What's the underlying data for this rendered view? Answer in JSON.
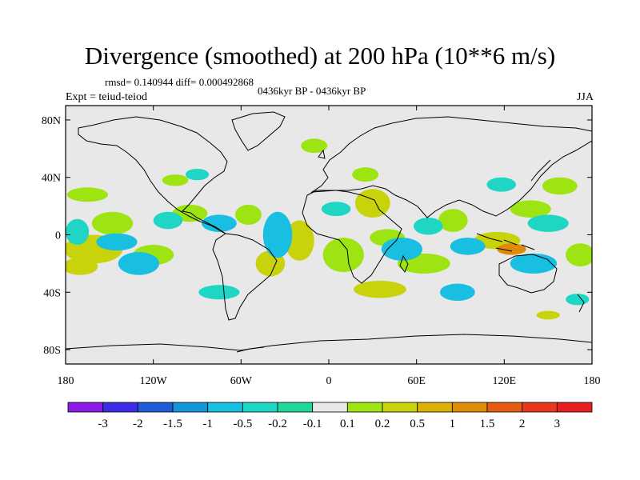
{
  "chart_data": {
    "type": "heatmap",
    "title": "Divergence (smoothed) at 200 hPa (10**6 m/s)",
    "stats_label": "rmsd= 0.140944  diff= 0.000492868",
    "period_label": "0436kyr BP - 0436kyr BP",
    "experiment_label": "Expt = teiud-teiod",
    "season_label": "JJA",
    "x_ticks": [
      "180",
      "120W",
      "60W",
      "0",
      "60E",
      "120E",
      "180"
    ],
    "x_values": [
      -180,
      -120,
      -60,
      0,
      60,
      120,
      180
    ],
    "y_ticks": [
      "80N",
      "40N",
      "0",
      "40S",
      "80S"
    ],
    "y_values": [
      80,
      40,
      0,
      -40,
      -80
    ],
    "xlim": [
      -180,
      180
    ],
    "ylim": [
      -90,
      90
    ],
    "colorbar": {
      "labels": [
        "-3",
        "-2",
        "-1.5",
        "-1",
        "-0.5",
        "-0.2",
        "-0.1",
        "0.1",
        "0.2",
        "0.5",
        "1",
        "1.5",
        "2",
        "3"
      ],
      "colors": [
        "#8c1de8",
        "#3d2ce6",
        "#1f5cd8",
        "#1396dc",
        "#18bfe0",
        "#1fd6c4",
        "#1ed79a",
        "#e8e8e8",
        "#9ee312",
        "#c8d30c",
        "#dcb00a",
        "#e08a0c",
        "#e55d12",
        "#e8381c",
        "#e62020"
      ]
    },
    "positive_regions": [
      {
        "lon": -95,
        "lat": 15,
        "rx": 12,
        "ry": 6,
        "level": 0.2
      },
      {
        "lon": -161,
        "lat": -10,
        "rx": 20,
        "ry": 10,
        "level": 0.5
      },
      {
        "lon": -148,
        "lat": 8,
        "rx": 14,
        "ry": 8,
        "level": 0.2
      },
      {
        "lon": -170,
        "lat": -22,
        "rx": 12,
        "ry": 6,
        "level": 0.5
      },
      {
        "lon": -120,
        "lat": -14,
        "rx": 14,
        "ry": 7,
        "level": 0.2
      },
      {
        "lon": -165,
        "lat": 28,
        "rx": 14,
        "ry": 5,
        "level": 0.2
      },
      {
        "lon": -105,
        "lat": 38,
        "rx": 9,
        "ry": 4,
        "level": 0.2
      },
      {
        "lon": -40,
        "lat": -20,
        "rx": 10,
        "ry": 9,
        "level": 0.5
      },
      {
        "lon": -55,
        "lat": 14,
        "rx": 9,
        "ry": 7,
        "level": 0.2
      },
      {
        "lon": -20,
        "lat": -4,
        "rx": 10,
        "ry": 14,
        "level": 0.5
      },
      {
        "lon": 10,
        "lat": -14,
        "rx": 14,
        "ry": 12,
        "level": 0.2
      },
      {
        "lon": 40,
        "lat": -2,
        "rx": 12,
        "ry": 6,
        "level": 0.2
      },
      {
        "lon": 35,
        "lat": -38,
        "rx": 18,
        "ry": 6,
        "level": 0.5
      },
      {
        "lon": 30,
        "lat": 22,
        "rx": 12,
        "ry": 10,
        "level": 0.5
      },
      {
        "lon": 65,
        "lat": -20,
        "rx": 18,
        "ry": 7,
        "level": 0.2
      },
      {
        "lon": 85,
        "lat": 10,
        "rx": 10,
        "ry": 8,
        "level": 0.2
      },
      {
        "lon": 115,
        "lat": -4,
        "rx": 16,
        "ry": 6,
        "level": 0.5
      },
      {
        "lon": 125,
        "lat": -10,
        "rx": 10,
        "ry": 4,
        "level": 1.5
      },
      {
        "lon": 138,
        "lat": 18,
        "rx": 14,
        "ry": 6,
        "level": 0.2
      },
      {
        "lon": 158,
        "lat": 34,
        "rx": 12,
        "ry": 6,
        "level": 0.2
      },
      {
        "lon": 172,
        "lat": -14,
        "rx": 10,
        "ry": 8,
        "level": 0.2
      },
      {
        "lon": 150,
        "lat": -56,
        "rx": 8,
        "ry": 3,
        "level": 0.5
      },
      {
        "lon": -10,
        "lat": 62,
        "rx": 9,
        "ry": 5,
        "level": 0.2
      },
      {
        "lon": 25,
        "lat": 42,
        "rx": 9,
        "ry": 5,
        "level": 0.2
      }
    ],
    "negative_regions": [
      {
        "lon": -145,
        "lat": -5,
        "rx": 14,
        "ry": 6,
        "level": -0.5
      },
      {
        "lon": -172,
        "lat": 2,
        "rx": 8,
        "ry": 9,
        "level": -0.2
      },
      {
        "lon": -130,
        "lat": -20,
        "rx": 14,
        "ry": 8,
        "level": -0.5
      },
      {
        "lon": -110,
        "lat": 10,
        "rx": 10,
        "ry": 6,
        "level": -0.2
      },
      {
        "lon": -75,
        "lat": 8,
        "rx": 12,
        "ry": 6,
        "level": -0.5
      },
      {
        "lon": -35,
        "lat": 0,
        "rx": 10,
        "ry": 16,
        "level": -0.5
      },
      {
        "lon": -75,
        "lat": -40,
        "rx": 14,
        "ry": 5,
        "level": -0.2
      },
      {
        "lon": 5,
        "lat": 18,
        "rx": 10,
        "ry": 5,
        "level": -0.2
      },
      {
        "lon": 50,
        "lat": -10,
        "rx": 14,
        "ry": 8,
        "level": -0.5
      },
      {
        "lon": 68,
        "lat": 6,
        "rx": 10,
        "ry": 6,
        "level": -0.2
      },
      {
        "lon": 95,
        "lat": -8,
        "rx": 12,
        "ry": 6,
        "level": -0.5
      },
      {
        "lon": 88,
        "lat": -40,
        "rx": 12,
        "ry": 6,
        "level": -0.5
      },
      {
        "lon": 140,
        "lat": -20,
        "rx": 16,
        "ry": 7,
        "level": -0.5
      },
      {
        "lon": 150,
        "lat": 8,
        "rx": 14,
        "ry": 6,
        "level": -0.2
      },
      {
        "lon": 118,
        "lat": 35,
        "rx": 10,
        "ry": 5,
        "level": -0.2
      },
      {
        "lon": -90,
        "lat": 42,
        "rx": 8,
        "ry": 4,
        "level": -0.2
      },
      {
        "lon": 170,
        "lat": -45,
        "rx": 8,
        "ry": 4,
        "level": -0.2
      }
    ]
  }
}
